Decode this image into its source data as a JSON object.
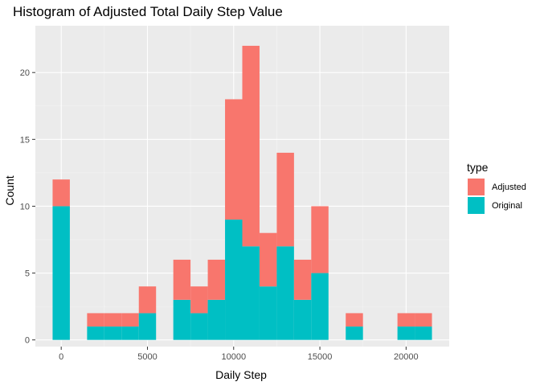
{
  "chart_data": {
    "type": "bar",
    "title": "Histogram of Adjusted Total Daily Step Value",
    "xlabel": "Daily Step",
    "ylabel": "Count",
    "xlim": [
      -1500,
      22500
    ],
    "ylim": [
      -0.5,
      23.5
    ],
    "x_ticks": [
      0,
      5000,
      10000,
      15000,
      20000
    ],
    "x_tick_labels": [
      "0",
      "5000",
      "10000",
      "15000",
      "20000"
    ],
    "y_ticks": [
      0,
      5,
      10,
      15,
      20
    ],
    "y_tick_labels": [
      "0",
      "5",
      "10",
      "15",
      "20"
    ],
    "bin_width": 1000,
    "stacked": true,
    "grid": true,
    "legend_position": "right",
    "legend_title": "type",
    "bin_centers": [
      0,
      1000,
      2000,
      3000,
      4000,
      5000,
      6000,
      7000,
      8000,
      9000,
      10000,
      11000,
      12000,
      13000,
      14000,
      15000,
      16000,
      17000,
      18000,
      19000,
      20000,
      21000
    ],
    "series": [
      {
        "name": "Adjusted",
        "color": "#F8766D",
        "values": [
          2,
          0,
          1,
          1,
          1,
          2,
          0,
          3,
          2,
          3,
          9,
          15,
          4,
          7,
          3,
          5,
          0,
          1,
          0,
          0,
          1,
          1
        ]
      },
      {
        "name": "Original",
        "color": "#00BFC4",
        "values": [
          10,
          0,
          1,
          1,
          1,
          2,
          0,
          3,
          2,
          3,
          9,
          7,
          4,
          7,
          3,
          5,
          0,
          1,
          0,
          0,
          1,
          1
        ]
      }
    ]
  }
}
